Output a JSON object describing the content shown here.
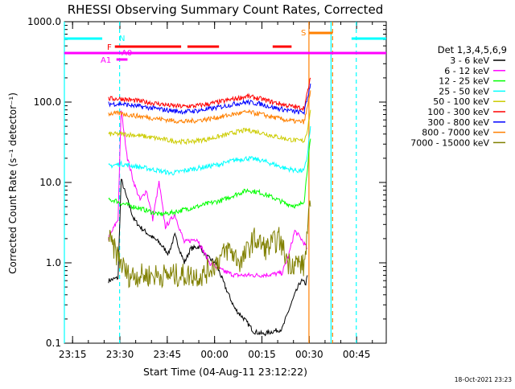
{
  "chart_data": {
    "type": "line",
    "title": "RHESSI Observing Summary Count Rates, Corrected",
    "xlabel": "Start Time (04-Aug-11 23:12:22)",
    "ylabel": "Corrected Count Rate (s⁻¹ detector⁻¹)",
    "y_scale": "log",
    "ylim": [
      0.1,
      1000.0
    ],
    "y_ticks": [
      "0.1",
      "1.0",
      "10.0",
      "100.0",
      "1000.0"
    ],
    "x_ticks": [
      "23:15",
      "23:30",
      "23:45",
      "00:00",
      "00:15",
      "00:30",
      "00:45"
    ],
    "x_tick_minutes": [
      2.6,
      17.6,
      32.6,
      47.6,
      62.6,
      77.6,
      92.6
    ],
    "xlim_minutes": [
      0,
      102
    ],
    "legend_title": "Det 1,3,4,5,6,9",
    "legend_position": "right",
    "timestamp": "18-Oct-2021 23:23",
    "series": [
      {
        "name": "3 - 6 keV",
        "color": "#000000",
        "x": [
          14,
          17,
          18,
          20,
          22,
          24,
          27,
          30,
          33,
          35,
          38,
          40,
          43,
          45,
          48,
          51,
          54,
          57,
          60,
          63,
          66,
          69,
          71,
          73,
          75,
          76.5,
          77
        ],
        "y": [
          0.6,
          0.65,
          11,
          6,
          3.5,
          2.8,
          2.2,
          1.8,
          1.3,
          2.2,
          1.0,
          1.5,
          1.6,
          1.2,
          1.0,
          0.5,
          0.27,
          0.2,
          0.14,
          0.13,
          0.14,
          0.15,
          0.25,
          0.4,
          0.6,
          0.55,
          0.7
        ]
      },
      {
        "name": "6 - 12 keV",
        "color": "#ff00ff",
        "x": [
          14,
          17,
          18,
          20,
          22,
          24,
          26,
          28,
          30,
          32,
          35,
          38,
          42,
          46,
          50,
          54,
          58,
          62,
          66,
          69,
          71,
          73,
          75,
          77
        ],
        "y": [
          2.0,
          3.5,
          80,
          20,
          10,
          6,
          8,
          3.5,
          10,
          2.8,
          4.0,
          1.8,
          2.0,
          1.0,
          0.8,
          0.7,
          0.7,
          0.7,
          0.72,
          0.75,
          1.2,
          2.5,
          2.0,
          1.5
        ]
      },
      {
        "name": "12 - 25 keV",
        "color": "#00ff00",
        "x": [
          14,
          16,
          18,
          22,
          26,
          30,
          34,
          38,
          42,
          46,
          50,
          54,
          58,
          62,
          66,
          70,
          74,
          76,
          77,
          78
        ],
        "y": [
          6.0,
          6.0,
          5.5,
          5.0,
          4.5,
          4.0,
          4.2,
          4.6,
          5.0,
          5.5,
          6.0,
          7.0,
          8.0,
          7.5,
          6.5,
          5.5,
          5.0,
          6.0,
          15,
          35
        ]
      },
      {
        "name": "25 - 50 keV",
        "color": "#00ffff",
        "x": [
          14,
          18,
          22,
          26,
          30,
          34,
          38,
          42,
          46,
          50,
          54,
          58,
          62,
          66,
          70,
          74,
          76,
          77,
          78
        ],
        "y": [
          16,
          17,
          16,
          15,
          14,
          13,
          14,
          15,
          16,
          17,
          19,
          20,
          19,
          17,
          15,
          14,
          14,
          22,
          50
        ]
      },
      {
        "name": "50 - 100 keV",
        "color": "#cccc00",
        "x": [
          14,
          18,
          22,
          26,
          30,
          34,
          38,
          42,
          46,
          50,
          54,
          58,
          62,
          66,
          70,
          74,
          76,
          77,
          78
        ],
        "y": [
          40,
          40,
          39,
          37,
          35,
          33,
          32,
          33,
          35,
          38,
          42,
          45,
          42,
          38,
          35,
          33,
          33,
          45,
          80
        ]
      },
      {
        "name": "100 - 300 keV",
        "color": "#ff0000",
        "x": [
          14,
          18,
          22,
          26,
          30,
          34,
          38,
          42,
          46,
          50,
          54,
          58,
          62,
          66,
          70,
          74,
          76,
          77,
          78
        ],
        "y": [
          110,
          110,
          105,
          100,
          95,
          90,
          88,
          90,
          95,
          102,
          110,
          118,
          110,
          100,
          92,
          85,
          85,
          130,
          200
        ]
      },
      {
        "name": "300 - 800 keV",
        "color": "#0000ff",
        "x": [
          14,
          18,
          22,
          26,
          30,
          34,
          38,
          42,
          46,
          50,
          54,
          58,
          62,
          66,
          70,
          74,
          76,
          77,
          78
        ],
        "y": [
          95,
          95,
          90,
          86,
          82,
          78,
          76,
          78,
          82,
          88,
          95,
          100,
          95,
          86,
          80,
          75,
          75,
          110,
          170
        ]
      },
      {
        "name": "800 - 7000 keV",
        "color": "#ff8000",
        "x": [
          14,
          18,
          22,
          26,
          30,
          34,
          38,
          42,
          46,
          50,
          54,
          58,
          62,
          66,
          70,
          74,
          76,
          77,
          78
        ],
        "y": [
          72,
          72,
          68,
          65,
          62,
          59,
          57,
          59,
          62,
          66,
          71,
          75,
          71,
          65,
          60,
          57,
          57,
          85,
          140
        ]
      },
      {
        "name": "7000 - 15000 keV",
        "color": "#808000",
        "x": [
          14,
          18,
          20,
          26,
          32,
          38,
          44,
          48,
          52,
          56,
          60,
          64,
          68,
          71,
          74,
          76,
          77,
          78
        ],
        "y": [
          2.0,
          1.0,
          0.7,
          0.7,
          0.7,
          0.7,
          0.7,
          1.0,
          1.5,
          1.0,
          2.0,
          1.5,
          2.0,
          1.0,
          1.0,
          0.9,
          2.5,
          5.0
        ]
      }
    ],
    "annotations": {
      "night": {
        "label": "N",
        "color": "#00ffff",
        "bars": [
          [
            0,
            12
          ],
          [
            91,
            102
          ]
        ],
        "solid_lines": [
          0,
          84.5
        ],
        "dashed_lines": [
          17.5,
          92.5
        ]
      },
      "saa": {
        "label": "S",
        "color": "#ff8000",
        "bars": [
          [
            77.5,
            85
          ]
        ],
        "solid_lines": [
          77.5
        ],
        "dashed_lines": [
          85
        ]
      },
      "flare": {
        "label": "F",
        "color": "#ff0000",
        "bars": [
          [
            16,
            37
          ],
          [
            39,
            49
          ],
          [
            66,
            72
          ]
        ]
      },
      "attenuator_a0": {
        "label": "A0",
        "color": "#ff00ff",
        "bars": [
          [
            0,
            102
          ]
        ]
      },
      "attenuator_a1": {
        "label": "A1",
        "color": "#ff00ff",
        "bars": [
          [
            16.5,
            20
          ]
        ]
      }
    }
  }
}
